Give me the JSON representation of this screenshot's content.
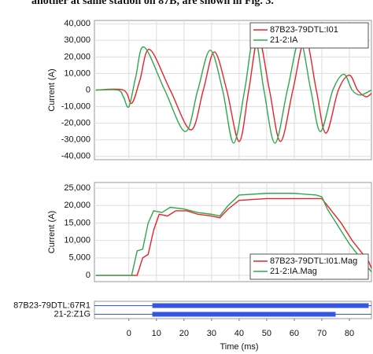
{
  "caption_fragment": "another at same station on 87B, are shown in Fig. 3.",
  "time_axis": {
    "label": "Time (ms)",
    "xlim": [
      -12.5,
      88
    ],
    "xticks": [
      0,
      10,
      20,
      30,
      40,
      50,
      60,
      70,
      80
    ]
  },
  "chart_data": [
    {
      "type": "line",
      "ylabel": "Current (A)",
      "smooth": true,
      "grid": true,
      "legend": "upper right",
      "ylim": [
        -42000,
        42000
      ],
      "yticks": [
        {
          "value": -40000,
          "label": "-40,000"
        },
        {
          "value": -30000,
          "label": "-30,000"
        },
        {
          "value": -20000,
          "label": "-20,000"
        },
        {
          "value": -10000,
          "label": "-10,000"
        },
        0,
        {
          "value": 10000,
          "label": "10,000"
        },
        {
          "value": 20000,
          "label": "20,000"
        },
        {
          "value": 30000,
          "label": "30,000"
        },
        {
          "value": 40000,
          "label": "40,000"
        }
      ],
      "series": [
        {
          "name": "87B23-79DTL:I01",
          "color": "#e8232a",
          "x": [
            -12,
            -2,
            1,
            4,
            7.5,
            15,
            22.5,
            27,
            31,
            35.5,
            40,
            43.5,
            47,
            51,
            55,
            59.5,
            64,
            68,
            71.5,
            76,
            80,
            83,
            86,
            88
          ],
          "values": [
            0,
            0,
            -8000,
            6000,
            24500,
            0,
            -24000,
            0,
            23000,
            0,
            -31000,
            0,
            31500,
            0,
            -31000,
            0,
            31000,
            0,
            -26000,
            0,
            9000,
            0,
            -4000,
            -2000
          ]
        },
        {
          "name": "21-2:IA",
          "color": "#2ea84a",
          "x": [
            -12,
            -4,
            -2,
            0,
            2.5,
            5.5,
            13,
            20.5,
            25,
            29.5,
            34,
            38,
            42,
            45.5,
            49,
            53,
            57.5,
            62,
            66,
            69.5,
            74,
            78,
            81,
            84,
            88
          ],
          "values": [
            0,
            0,
            -4000,
            -10000,
            8000,
            26000,
            0,
            -25000,
            0,
            24000,
            0,
            -32000,
            0,
            33000,
            0,
            -32000,
            0,
            30000,
            0,
            -25000,
            0,
            9500,
            0,
            -3000,
            0
          ]
        }
      ]
    },
    {
      "type": "line",
      "ylabel": "Current (A)",
      "smooth": false,
      "grid": true,
      "legend": "lower right",
      "ylim": [
        -1800,
        26600
      ],
      "yticks": [
        0,
        {
          "value": 5000,
          "label": "5,000"
        },
        {
          "value": 10000,
          "label": "10,000"
        },
        {
          "value": 15000,
          "label": "15,000"
        },
        {
          "value": 20000,
          "label": "20,000"
        },
        {
          "value": 25000,
          "label": "25,000"
        }
      ],
      "series": [
        {
          "name": "87B23-79DTL:I01.Mag",
          "color": "#e8232a",
          "x": [
            -12,
            3,
            5,
            7,
            9,
            11,
            14,
            17,
            21,
            25,
            30,
            33,
            36,
            40,
            50,
            60,
            70,
            73,
            77,
            81,
            84,
            87,
            88
          ],
          "values": [
            0,
            0,
            5000,
            6000,
            13000,
            17500,
            17000,
            18500,
            18500,
            17500,
            17000,
            16500,
            19000,
            21500,
            22000,
            22000,
            22000,
            19000,
            15000,
            10000,
            7000,
            4000,
            2000
          ]
        },
        {
          "name": "21-2:IA.Mag",
          "color": "#2ea84a",
          "x": [
            -12,
            1,
            3,
            5,
            7,
            9,
            12,
            15,
            20,
            25,
            30,
            33,
            36,
            40,
            50,
            60,
            68,
            70,
            72,
            76,
            80,
            83,
            86,
            88
          ],
          "values": [
            0,
            0,
            7000,
            7500,
            15000,
            18500,
            18000,
            19500,
            19000,
            18000,
            17500,
            17000,
            20000,
            23000,
            23500,
            23500,
            23000,
            22500,
            19000,
            14000,
            9000,
            6000,
            3000,
            1000
          ]
        }
      ]
    },
    {
      "type": "digital",
      "color": "#3556e0",
      "channels": [
        {
          "name": "87B23-79DTL:67R1",
          "on": 8.5,
          "off": 87
        },
        {
          "name": "21-2:Z1G",
          "on": 8.5,
          "off": 75
        }
      ]
    }
  ]
}
